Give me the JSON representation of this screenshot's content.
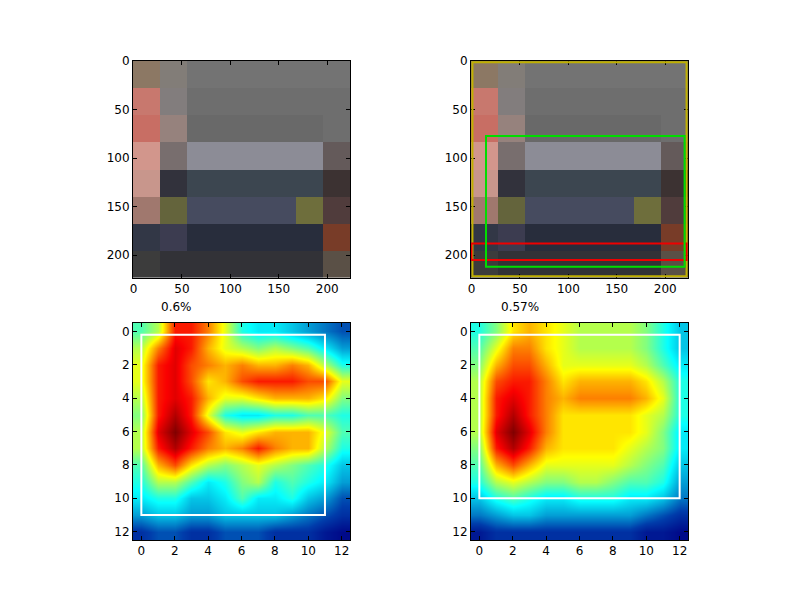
{
  "chart_data": [
    {
      "type": "image",
      "extent": [
        -0.5,
        223.5,
        223.5,
        -0.5
      ],
      "pixels": [
        [
          [
            140,
            120,
            100
          ],
          [
            130,
            125,
            120
          ],
          [
            115,
            115,
            115
          ],
          [
            115,
            115,
            115
          ],
          [
            115,
            115,
            115
          ],
          [
            115,
            115,
            115
          ],
          [
            115,
            115,
            115
          ],
          [
            115,
            115,
            115
          ]
        ],
        [
          [
            200,
            120,
            110
          ],
          [
            130,
            125,
            125
          ],
          [
            110,
            110,
            110
          ],
          [
            110,
            110,
            110
          ],
          [
            110,
            110,
            110
          ],
          [
            110,
            110,
            110
          ],
          [
            110,
            110,
            110
          ],
          [
            110,
            110,
            110
          ]
        ],
        [
          [
            200,
            110,
            100
          ],
          [
            150,
            130,
            125
          ],
          [
            105,
            105,
            105
          ],
          [
            105,
            105,
            105
          ],
          [
            105,
            105,
            105
          ],
          [
            105,
            105,
            105
          ],
          [
            105,
            105,
            105
          ],
          [
            110,
            110,
            110
          ]
        ],
        [
          [
            210,
            150,
            140
          ],
          [
            120,
            110,
            110
          ],
          [
            140,
            140,
            150
          ],
          [
            140,
            140,
            150
          ],
          [
            140,
            140,
            150
          ],
          [
            140,
            140,
            150
          ],
          [
            140,
            140,
            150
          ],
          [
            100,
            90,
            90
          ]
        ],
        [
          [
            200,
            150,
            140
          ],
          [
            50,
            50,
            60
          ],
          [
            60,
            70,
            80
          ],
          [
            60,
            70,
            80
          ],
          [
            60,
            70,
            80
          ],
          [
            60,
            70,
            80
          ],
          [
            60,
            70,
            80
          ],
          [
            60,
            50,
            50
          ]
        ],
        [
          [
            160,
            120,
            110
          ],
          [
            100,
            100,
            60
          ],
          [
            70,
            75,
            95
          ],
          [
            70,
            75,
            95
          ],
          [
            70,
            75,
            95
          ],
          [
            70,
            75,
            95
          ],
          [
            110,
            110,
            60
          ],
          [
            80,
            60,
            60
          ]
        ],
        [
          [
            50,
            55,
            70
          ],
          [
            60,
            60,
            80
          ],
          [
            40,
            45,
            60
          ],
          [
            40,
            45,
            60
          ],
          [
            40,
            45,
            60
          ],
          [
            40,
            45,
            60
          ],
          [
            40,
            45,
            60
          ],
          [
            120,
            60,
            40
          ]
        ],
        [
          [
            60,
            60,
            60
          ],
          [
            50,
            50,
            55
          ],
          [
            50,
            50,
            55
          ],
          [
            50,
            50,
            55
          ],
          [
            50,
            50,
            55
          ],
          [
            50,
            50,
            55
          ],
          [
            50,
            50,
            55
          ],
          [
            90,
            80,
            70
          ]
        ]
      ],
      "xlim": [
        -0.5,
        223.5
      ],
      "ylim": [
        223.5,
        -0.5
      ],
      "xticks": [
        0,
        50,
        100,
        150,
        200
      ],
      "yticks": [
        0,
        50,
        100,
        150,
        200
      ]
    },
    {
      "type": "image",
      "extent": [
        -0.5,
        223.5,
        223.5,
        -0.5
      ],
      "pixels": [
        [
          [
            140,
            120,
            100
          ],
          [
            130,
            125,
            120
          ],
          [
            115,
            115,
            115
          ],
          [
            115,
            115,
            115
          ],
          [
            115,
            115,
            115
          ],
          [
            115,
            115,
            115
          ],
          [
            115,
            115,
            115
          ],
          [
            115,
            115,
            115
          ]
        ],
        [
          [
            200,
            120,
            110
          ],
          [
            130,
            125,
            125
          ],
          [
            110,
            110,
            110
          ],
          [
            110,
            110,
            110
          ],
          [
            110,
            110,
            110
          ],
          [
            110,
            110,
            110
          ],
          [
            110,
            110,
            110
          ],
          [
            110,
            110,
            110
          ]
        ],
        [
          [
            200,
            110,
            100
          ],
          [
            150,
            130,
            125
          ],
          [
            105,
            105,
            105
          ],
          [
            105,
            105,
            105
          ],
          [
            105,
            105,
            105
          ],
          [
            105,
            105,
            105
          ],
          [
            105,
            105,
            105
          ],
          [
            110,
            110,
            110
          ]
        ],
        [
          [
            210,
            150,
            140
          ],
          [
            120,
            110,
            110
          ],
          [
            140,
            140,
            150
          ],
          [
            140,
            140,
            150
          ],
          [
            140,
            140,
            150
          ],
          [
            140,
            140,
            150
          ],
          [
            140,
            140,
            150
          ],
          [
            100,
            90,
            90
          ]
        ],
        [
          [
            200,
            150,
            140
          ],
          [
            50,
            50,
            60
          ],
          [
            60,
            70,
            80
          ],
          [
            60,
            70,
            80
          ],
          [
            60,
            70,
            80
          ],
          [
            60,
            70,
            80
          ],
          [
            60,
            70,
            80
          ],
          [
            60,
            50,
            50
          ]
        ],
        [
          [
            160,
            120,
            110
          ],
          [
            100,
            100,
            60
          ],
          [
            70,
            75,
            95
          ],
          [
            70,
            75,
            95
          ],
          [
            70,
            75,
            95
          ],
          [
            70,
            75,
            95
          ],
          [
            110,
            110,
            60
          ],
          [
            80,
            60,
            60
          ]
        ],
        [
          [
            50,
            55,
            70
          ],
          [
            60,
            60,
            80
          ],
          [
            40,
            45,
            60
          ],
          [
            40,
            45,
            60
          ],
          [
            40,
            45,
            60
          ],
          [
            40,
            45,
            60
          ],
          [
            40,
            45,
            60
          ],
          [
            120,
            60,
            40
          ]
        ],
        [
          [
            60,
            60,
            60
          ],
          [
            50,
            50,
            55
          ],
          [
            50,
            50,
            55
          ],
          [
            50,
            50,
            55
          ],
          [
            50,
            50,
            55
          ],
          [
            50,
            50,
            55
          ],
          [
            50,
            50,
            55
          ],
          [
            90,
            80,
            70
          ]
        ]
      ],
      "xlim": [
        -0.5,
        223.5
      ],
      "ylim": [
        223.5,
        -0.5
      ],
      "xticks": [
        0,
        50,
        100,
        150,
        200
      ],
      "yticks": [
        0,
        50,
        100,
        150,
        200
      ],
      "boxes": [
        {
          "x0": 1,
          "y0": 1,
          "x1": 222,
          "y1": 222,
          "color": "#c0b000"
        },
        {
          "x0": 0,
          "y0": 188,
          "x1": 222,
          "y1": 205,
          "color": "#ee0000"
        },
        {
          "x0": 15,
          "y0": 77,
          "x1": 220,
          "y1": 212,
          "color": "#00dd00"
        }
      ]
    },
    {
      "type": "heatmap",
      "title": "0.6%",
      "cells": [
        [
          0.45,
          0.55,
          0.85,
          0.85,
          0.75,
          0.6,
          0.4,
          0.35,
          0.35,
          0.3,
          0.25,
          0.2,
          0.15
        ],
        [
          0.55,
          0.75,
          0.9,
          0.85,
          0.7,
          0.6,
          0.55,
          0.5,
          0.55,
          0.5,
          0.45,
          0.35,
          0.25
        ],
        [
          0.6,
          0.85,
          0.9,
          0.8,
          0.75,
          0.7,
          0.75,
          0.7,
          0.7,
          0.75,
          0.7,
          0.55,
          0.4
        ],
        [
          0.6,
          0.85,
          0.9,
          0.8,
          0.65,
          0.7,
          0.8,
          0.85,
          0.85,
          0.85,
          0.8,
          0.8,
          0.6
        ],
        [
          0.55,
          0.85,
          0.9,
          0.85,
          0.7,
          0.6,
          0.6,
          0.65,
          0.7,
          0.7,
          0.7,
          0.65,
          0.5
        ],
        [
          0.5,
          0.85,
          0.95,
          0.85,
          0.6,
          0.4,
          0.35,
          0.35,
          0.4,
          0.4,
          0.45,
          0.45,
          0.4
        ],
        [
          0.55,
          0.9,
          1.0,
          0.9,
          0.8,
          0.65,
          0.6,
          0.65,
          0.7,
          0.7,
          0.7,
          0.6,
          0.45
        ],
        [
          0.55,
          0.85,
          0.95,
          0.85,
          0.75,
          0.7,
          0.75,
          0.85,
          0.75,
          0.7,
          0.7,
          0.55,
          0.4
        ],
        [
          0.45,
          0.7,
          0.8,
          0.65,
          0.55,
          0.5,
          0.55,
          0.6,
          0.55,
          0.5,
          0.45,
          0.4,
          0.3
        ],
        [
          0.4,
          0.55,
          0.55,
          0.45,
          0.35,
          0.4,
          0.5,
          0.55,
          0.4,
          0.45,
          0.4,
          0.35,
          0.25
        ],
        [
          0.35,
          0.4,
          0.4,
          0.3,
          0.3,
          0.35,
          0.45,
          0.35,
          0.35,
          0.4,
          0.3,
          0.25,
          0.15
        ],
        [
          0.25,
          0.3,
          0.3,
          0.25,
          0.25,
          0.3,
          0.3,
          0.3,
          0.3,
          0.25,
          0.2,
          0.15,
          0.1
        ],
        [
          0.1,
          0.15,
          0.15,
          0.1,
          0.1,
          0.15,
          0.15,
          0.15,
          0.1,
          0.1,
          0.1,
          0.05,
          0.02
        ]
      ],
      "zlim": [
        0,
        1
      ],
      "xlim": [
        -0.5,
        12.5
      ],
      "ylim": [
        12.5,
        -0.5
      ],
      "xticks": [
        0,
        2,
        4,
        6,
        8,
        10,
        12
      ],
      "yticks": [
        0,
        2,
        4,
        6,
        8,
        10,
        12
      ],
      "boxes": [
        {
          "x0": 0,
          "y0": 0.2,
          "x1": 11,
          "y1": 11,
          "color": "white"
        }
      ]
    },
    {
      "type": "heatmap",
      "title": "0.57%",
      "cells": [
        [
          0.4,
          0.5,
          0.65,
          0.7,
          0.65,
          0.6,
          0.55,
          0.55,
          0.55,
          0.55,
          0.5,
          0.4,
          0.3
        ],
        [
          0.45,
          0.6,
          0.75,
          0.75,
          0.65,
          0.6,
          0.55,
          0.55,
          0.55,
          0.55,
          0.5,
          0.4,
          0.3
        ],
        [
          0.5,
          0.7,
          0.8,
          0.8,
          0.7,
          0.6,
          0.6,
          0.6,
          0.6,
          0.6,
          0.55,
          0.45,
          0.35
        ],
        [
          0.55,
          0.8,
          0.85,
          0.85,
          0.75,
          0.65,
          0.7,
          0.7,
          0.7,
          0.7,
          0.65,
          0.55,
          0.4
        ],
        [
          0.55,
          0.85,
          0.9,
          0.85,
          0.75,
          0.7,
          0.75,
          0.75,
          0.75,
          0.75,
          0.7,
          0.6,
          0.4
        ],
        [
          0.55,
          0.85,
          0.95,
          0.85,
          0.75,
          0.65,
          0.65,
          0.65,
          0.65,
          0.65,
          0.6,
          0.55,
          0.4
        ],
        [
          0.55,
          0.9,
          1.0,
          0.9,
          0.75,
          0.65,
          0.65,
          0.65,
          0.65,
          0.65,
          0.6,
          0.5,
          0.35
        ],
        [
          0.5,
          0.85,
          0.95,
          0.85,
          0.7,
          0.65,
          0.65,
          0.65,
          0.65,
          0.6,
          0.55,
          0.5,
          0.35
        ],
        [
          0.45,
          0.7,
          0.8,
          0.7,
          0.6,
          0.6,
          0.6,
          0.6,
          0.6,
          0.55,
          0.5,
          0.45,
          0.3
        ],
        [
          0.4,
          0.55,
          0.6,
          0.55,
          0.5,
          0.5,
          0.55,
          0.55,
          0.5,
          0.45,
          0.45,
          0.4,
          0.25
        ],
        [
          0.3,
          0.4,
          0.45,
          0.4,
          0.35,
          0.35,
          0.4,
          0.4,
          0.4,
          0.35,
          0.35,
          0.3,
          0.2
        ],
        [
          0.2,
          0.25,
          0.3,
          0.3,
          0.25,
          0.25,
          0.25,
          0.25,
          0.25,
          0.25,
          0.2,
          0.15,
          0.1
        ],
        [
          0.05,
          0.1,
          0.1,
          0.1,
          0.1,
          0.1,
          0.1,
          0.1,
          0.1,
          0.1,
          0.05,
          0.05,
          0.02
        ]
      ],
      "zlim": [
        0,
        1
      ],
      "xlim": [
        -0.5,
        12.5
      ],
      "ylim": [
        12.5,
        -0.5
      ],
      "xticks": [
        0,
        2,
        4,
        6,
        8,
        10,
        12
      ],
      "yticks": [
        0,
        2,
        4,
        6,
        8,
        10,
        12
      ],
      "boxes": [
        {
          "x0": 0,
          "y0": 0.2,
          "x1": 12,
          "y1": 10,
          "color": "white"
        }
      ]
    }
  ]
}
